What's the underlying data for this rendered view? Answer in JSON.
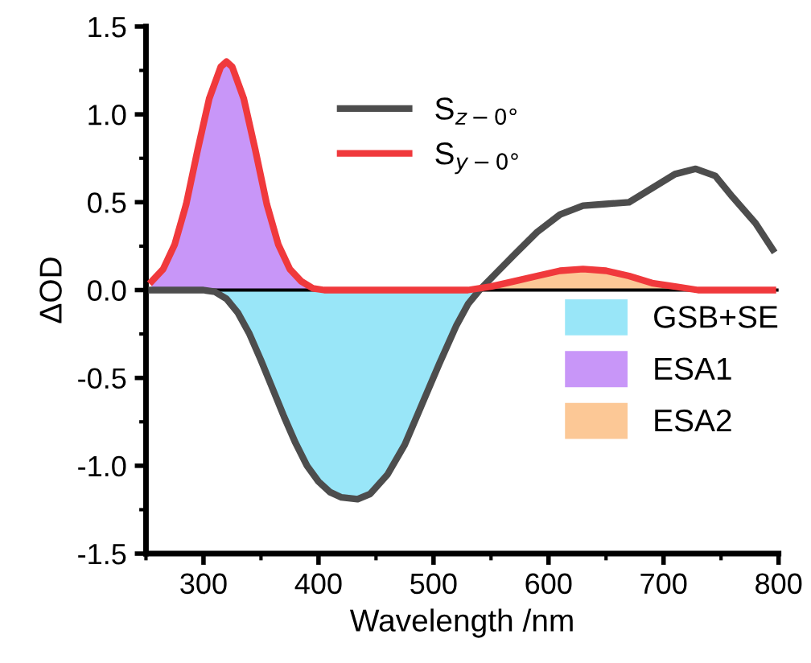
{
  "chart_data": {
    "type": "line",
    "xlabel": "Wavelength /nm",
    "ylabel": "ΔOD",
    "xlim": [
      250,
      800
    ],
    "xticks": [
      300,
      400,
      500,
      600,
      700,
      800
    ],
    "ylim": [
      -1.5,
      1.5
    ],
    "yticks": [
      -1.5,
      {
        "value": -1,
        "label": "-1.0"
      },
      -0.5,
      {
        "value": 0,
        "label": "0.0"
      },
      0.5,
      {
        "value": 1,
        "label": "1.0"
      },
      1.5
    ],
    "grid": false,
    "legend": "top",
    "marker": "none",
    "line_style": "solid",
    "ref_lines": [
      {
        "axis": "y",
        "value": 0,
        "color": "#000000"
      }
    ],
    "series": [
      {
        "type": "area",
        "name": "GSB+SE",
        "color": "#99e6f8",
        "x": [
          300,
          310,
          320,
          330,
          340,
          350,
          360,
          370,
          380,
          390,
          400,
          410,
          420,
          434,
          445,
          460,
          475,
          490,
          505,
          520,
          530,
          540
        ],
        "values": [
          0,
          -0.01,
          -0.05,
          -0.13,
          -0.25,
          -0.4,
          -0.56,
          -0.72,
          -0.87,
          -1.0,
          -1.09,
          -1.15,
          -1.18,
          -1.19,
          -1.16,
          -1.05,
          -0.88,
          -0.65,
          -0.42,
          -0.2,
          -0.08,
          0
        ]
      },
      {
        "type": "area",
        "name": "ESA1",
        "color": "#c896f8",
        "x": [
          255,
          265,
          275,
          285,
          295,
          305,
          315,
          320,
          325,
          335,
          345,
          355,
          365,
          375,
          385,
          395,
          405
        ],
        "values": [
          0.05,
          0.12,
          0.26,
          0.49,
          0.8,
          1.09,
          1.27,
          1.3,
          1.27,
          1.09,
          0.8,
          0.49,
          0.26,
          0.12,
          0.05,
          0.01,
          0
        ]
      },
      {
        "type": "area",
        "name": "ESA2",
        "color": "#fcc896",
        "x": [
          530,
          550,
          570,
          590,
          610,
          630,
          650,
          670,
          690,
          710,
          730
        ],
        "values": [
          0,
          0.02,
          0.05,
          0.08,
          0.11,
          0.12,
          0.11,
          0.08,
          0.04,
          0.02,
          0
        ]
      },
      {
        "name": "S$_{z−0°}$",
        "color": "#4d4d4d",
        "x": [
          255,
          280,
          300,
          310,
          320,
          330,
          340,
          350,
          360,
          370,
          380,
          390,
          400,
          410,
          420,
          434,
          445,
          460,
          475,
          490,
          505,
          520,
          530,
          540,
          555,
          570,
          590,
          610,
          630,
          650,
          670,
          690,
          710,
          728,
          745,
          760,
          780,
          795
        ],
        "values": [
          0,
          0,
          0,
          -0.01,
          -0.05,
          -0.13,
          -0.25,
          -0.4,
          -0.56,
          -0.72,
          -0.87,
          -1.0,
          -1.09,
          -1.15,
          -1.18,
          -1.19,
          -1.16,
          -1.05,
          -0.88,
          -0.65,
          -0.42,
          -0.2,
          -0.08,
          0,
          0.1,
          0.2,
          0.33,
          0.43,
          0.48,
          0.49,
          0.5,
          0.58,
          0.66,
          0.69,
          0.65,
          0.53,
          0.38,
          0.23
        ]
      },
      {
        "name": "S$_{y−0°}$",
        "color": "#f0393c",
        "x": [
          255,
          265,
          275,
          285,
          295,
          305,
          315,
          320,
          325,
          335,
          345,
          355,
          365,
          375,
          385,
          395,
          405,
          520,
          530,
          550,
          570,
          590,
          610,
          630,
          650,
          670,
          690,
          710,
          730,
          795
        ],
        "values": [
          0.05,
          0.12,
          0.26,
          0.49,
          0.8,
          1.09,
          1.27,
          1.3,
          1.27,
          1.09,
          0.8,
          0.49,
          0.26,
          0.12,
          0.05,
          0.01,
          0,
          0,
          0,
          0.02,
          0.05,
          0.08,
          0.11,
          0.12,
          0.11,
          0.08,
          0.04,
          0.02,
          0,
          0
        ]
      }
    ]
  }
}
